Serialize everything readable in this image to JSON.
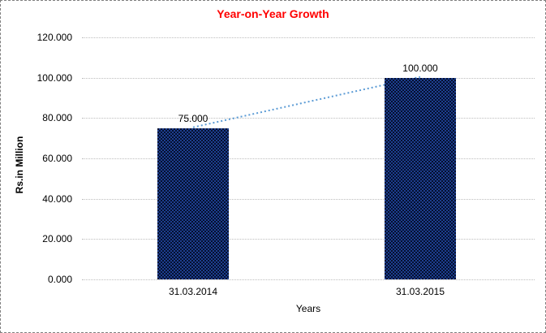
{
  "chart_data": {
    "type": "bar",
    "title": "Year-on-Year Growth",
    "title_color": "#ff0000",
    "categories": [
      "31.03.2014",
      "31.03.2015"
    ],
    "values": [
      75,
      100
    ],
    "value_labels": [
      "75.000",
      "100.000"
    ],
    "xlabel": "Years",
    "ylabel": "Rs.in Million",
    "ylim": [
      0,
      120
    ],
    "ytick_step": 20,
    "ytick_labels": [
      "120.000",
      "100.000",
      "80.000",
      "60.000",
      "40.000",
      "20.000",
      "0.000"
    ],
    "bar_color_dark": "#05102e",
    "bar_color_light": "#1d3e8f",
    "trendline_color": "#5b9bd5",
    "gridline_color": "#bdbdbd",
    "grid": true,
    "legend": "none"
  }
}
